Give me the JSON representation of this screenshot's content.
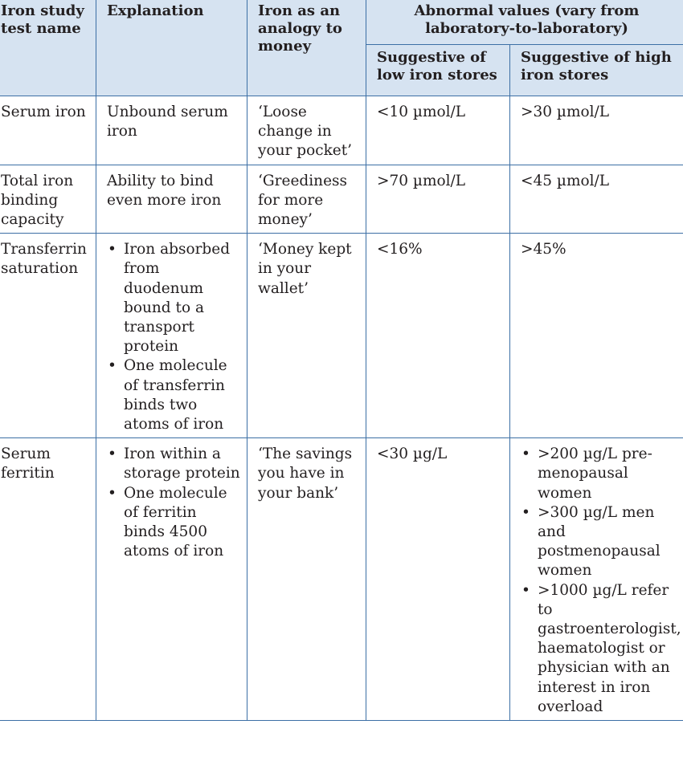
{
  "headers": {
    "test_name": "Iron study test name",
    "explanation": "Explanation",
    "analogy": "Iron as an analogy to money",
    "abnormal_group": "Abnormal values (vary from laboratory-to-laboratory)",
    "low": "Suggestive of low iron stores",
    "high": "Suggestive of high iron stores"
  },
  "rows": [
    {
      "test": "Serum iron",
      "explanation": "Unbound serum iron",
      "analogy": "‘Loose change in your pocket’",
      "low": "<10 µmol/L",
      "high": ">30 µmol/L"
    },
    {
      "test": "Total iron binding capacity",
      "explanation": "Ability to bind even more iron",
      "analogy": "‘Greediness for more money’",
      "low": ">70 µmol/L",
      "high": "<45 µmol/L"
    },
    {
      "test": "Transferrin saturation",
      "explanation_items": [
        "Iron absorbed from duodenum bound to a transport protein",
        "One molecule of transferrin binds two atoms of iron"
      ],
      "analogy": "‘Money kept in your wallet’",
      "low": "<16%",
      "high": ">45%"
    },
    {
      "test": "Serum ferritin",
      "explanation_items": [
        "Iron within a storage protein",
        "One molecule of ferritin binds 4500 atoms of iron"
      ],
      "analogy": "‘The savings you have in your bank’",
      "low": "<30 µg/L",
      "high_items": [
        ">200 µg/L pre-menopausal women",
        ">300 µg/L men and postmenopausal women",
        ">1000 µg/L refer to gastroenterologist, haematologist or physician with an interest in iron overload"
      ]
    }
  ]
}
